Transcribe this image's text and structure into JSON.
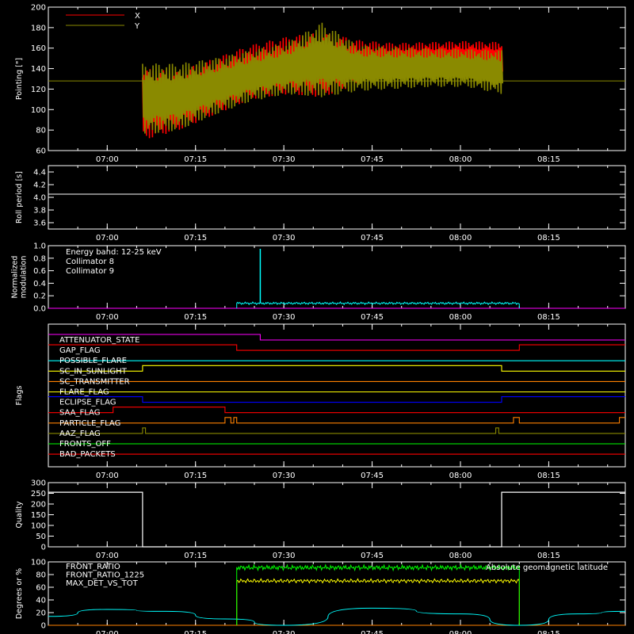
{
  "time_ticks": [
    "07:00",
    "07:15",
    "07:30",
    "07:45",
    "08:00",
    "08:15"
  ],
  "colors": {
    "x": "#ff0000",
    "y": "#8a8a00",
    "white": "#ffffff",
    "cyan": "#00ffff",
    "magenta": "#ff00ff",
    "green": "#00ff00",
    "yellow": "#ffff00",
    "orange": "#ff8000"
  },
  "chart_data": [
    {
      "id": "pointing",
      "type": "line",
      "ylabel": "Pointing [\"]",
      "ylim": [
        60,
        200
      ],
      "yticks": [
        60,
        80,
        100,
        120,
        140,
        160,
        180,
        200
      ],
      "x_range": [
        "06:50",
        "08:28"
      ],
      "legend": [
        "X",
        "Y"
      ],
      "series": [
        {
          "name": "X",
          "color_key": "x",
          "start": "07:06",
          "end": "08:07",
          "envelope_upper": [
            140,
            138,
            150,
            163,
            171,
            176,
            168,
            165,
            166,
            167,
            166
          ],
          "envelope_lower": [
            70,
            80,
            95,
            110,
            115,
            112,
            125,
            133,
            134,
            134,
            133
          ]
        },
        {
          "name": "Y",
          "color_key": "y",
          "start": "07:06",
          "end": "08:07",
          "envelope_upper": [
            145,
            145,
            150,
            158,
            165,
            185,
            163,
            161,
            160,
            159,
            158
          ],
          "envelope_lower": [
            75,
            80,
            95,
            108,
            115,
            112,
            118,
            120,
            122,
            122,
            115
          ]
        }
      ],
      "reference_level": 128
    },
    {
      "id": "roll",
      "type": "line",
      "ylabel": "Roll period [s]",
      "ylim": [
        3.5,
        4.5
      ],
      "yticks": [
        3.6,
        3.8,
        4.0,
        4.2,
        4.4
      ],
      "series": [
        {
          "name": "",
          "color_key": "white",
          "value": 4.05
        }
      ]
    },
    {
      "id": "modulation",
      "type": "line",
      "ylabel": [
        "Normalized",
        "modulation"
      ],
      "ylim": [
        0,
        1
      ],
      "yticks": [
        0.0,
        0.2,
        0.4,
        0.6,
        0.8,
        1.0
      ],
      "legend_text": [
        "Energy band: 12-25 keV",
        "Collimator 8",
        "Collimator 9"
      ],
      "series": [
        {
          "name": "Collimator 8",
          "color_key": "cyan",
          "start": "07:22",
          "end": "08:10",
          "typical": 0.08,
          "spike_time": "07:26",
          "spike_value": 0.95
        },
        {
          "name": "Collimator 9",
          "color_key": "magenta",
          "value": 0.0
        }
      ]
    },
    {
      "id": "flags",
      "type": "line",
      "ylabel": "Flags",
      "flags": [
        {
          "name": "ATTENUATOR_STATE",
          "color_key": "magenta",
          "steps": [
            [
              "06:50",
              1
            ],
            [
              "07:26",
              0
            ]
          ]
        },
        {
          "name": "GAP_FLAG",
          "color_key": "x",
          "steps": [
            [
              "06:50",
              1
            ],
            [
              "07:22",
              0
            ],
            [
              "08:10",
              1
            ]
          ]
        },
        {
          "name": "POSSIBLE_FLARE",
          "color_key": "cyan",
          "steps": [
            [
              "06:50",
              0
            ]
          ]
        },
        {
          "name": "SC_IN_SUNLIGHT",
          "color_key": "yellow",
          "steps": [
            [
              "06:50",
              0
            ],
            [
              "07:06",
              1
            ],
            [
              "08:07",
              0
            ]
          ]
        },
        {
          "name": "SC_TRANSMITTER",
          "color_key": "orange",
          "steps": [
            [
              "06:50",
              0
            ]
          ]
        },
        {
          "name": "FLARE_FLAG",
          "color_key": "yellow",
          "steps": [
            [
              "06:50",
              0
            ]
          ]
        },
        {
          "name": "ECLIPSE_FLAG",
          "color_key": "blue",
          "steps": [
            [
              "06:50",
              1
            ],
            [
              "07:06",
              0
            ],
            [
              "08:07",
              1
            ]
          ]
        },
        {
          "name": "SAA_FLAG",
          "color_key": "x",
          "steps": [
            [
              "06:50",
              0
            ],
            [
              "07:01",
              1
            ],
            [
              "07:20",
              0
            ]
          ]
        },
        {
          "name": "PARTICLE_FLAG",
          "color_key": "orange",
          "steps": [
            [
              "06:50",
              0
            ],
            [
              "07:20",
              1
            ],
            [
              "07:21",
              0
            ],
            [
              "07:21.5",
              1
            ],
            [
              "07:22",
              0
            ],
            [
              "08:09",
              1
            ],
            [
              "08:10",
              0
            ],
            [
              "08:27",
              1
            ]
          ]
        },
        {
          "name": "AAZ_FLAG",
          "color_key": "y",
          "steps": [
            [
              "06:50",
              0
            ],
            [
              "07:06",
              1
            ],
            [
              "07:06.5",
              0
            ],
            [
              "08:06",
              1
            ],
            [
              "08:06.5",
              0
            ]
          ]
        },
        {
          "name": "FRONTS_OFF",
          "color_key": "green",
          "steps": [
            [
              "06:50",
              0
            ]
          ]
        },
        {
          "name": "BAD_PACKETS",
          "color_key": "x",
          "steps": [
            [
              "06:50",
              0
            ]
          ]
        }
      ]
    },
    {
      "id": "quality",
      "type": "line",
      "ylabel": "Quality",
      "ylim": [
        0,
        300
      ],
      "yticks": [
        0,
        50,
        100,
        150,
        200,
        250,
        300
      ],
      "series": [
        {
          "name": "",
          "color_key": "white",
          "points": [
            [
              "06:50",
              255
            ],
            [
              "07:06",
              255
            ],
            [
              "07:06",
              0
            ],
            [
              "08:07",
              0
            ],
            [
              "08:07",
              255
            ],
            [
              "08:28",
              255
            ]
          ]
        }
      ]
    },
    {
      "id": "ratios",
      "type": "line",
      "ylabel": "Degrees or %",
      "ylim": [
        0,
        100
      ],
      "yticks": [
        0,
        20,
        40,
        60,
        80,
        100
      ],
      "legend": [
        "FRONT_RATIO",
        "FRONT_RATIO_1225",
        "MAX_DET_VS_TOT"
      ],
      "legend_right": "Absolute geomagnetic latitude",
      "series": [
        {
          "name": "FRONT_RATIO",
          "color_key": "yellow",
          "start": "07:22",
          "end": "08:10",
          "typical": 70
        },
        {
          "name": "FRONT_RATIO_1225",
          "color_key": "green",
          "start": "07:22",
          "end": "08:10",
          "typical": 91
        },
        {
          "name": "MAX_DET_VS_TOT",
          "color_key": "orange",
          "value": 0
        },
        {
          "name": "Absolute geomagnetic latitude",
          "color_key": "cyan",
          "points": [
            [
              "06:50",
              14
            ],
            [
              "07:00",
              25
            ],
            [
              "07:10",
              22
            ],
            [
              "07:20",
              10
            ],
            [
              "07:30",
              0
            ],
            [
              "07:45",
              27
            ],
            [
              "08:00",
              18
            ],
            [
              "08:10",
              0
            ],
            [
              "08:20",
              18
            ],
            [
              "08:28",
              22
            ]
          ]
        }
      ]
    }
  ]
}
